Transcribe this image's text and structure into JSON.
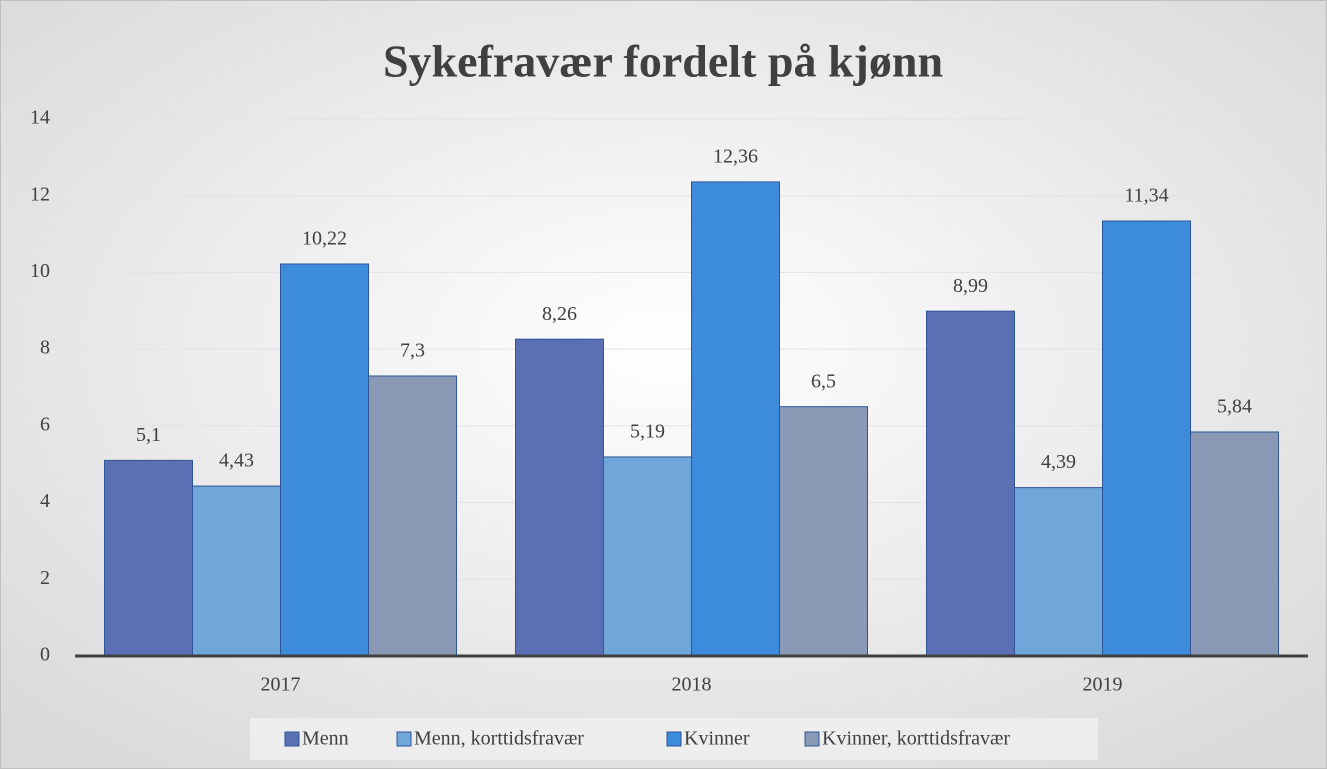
{
  "chart_data": {
    "type": "bar",
    "title": "Sykefravær fordelt på kjønn",
    "categories": [
      "2017",
      "2018",
      "2019"
    ],
    "series": [
      {
        "name": "Menn",
        "color": "#5b6fb4",
        "values": [
          5.1,
          8.26,
          8.99
        ],
        "value_labels": [
          "5,1",
          "8,26",
          "8,99"
        ]
      },
      {
        "name": "Menn, korttidsfravær",
        "color": "#6fa7da",
        "values": [
          4.43,
          5.19,
          4.39
        ],
        "value_labels": [
          "4,43",
          "5,19",
          "4,39"
        ]
      },
      {
        "name": "Kvinner",
        "color": "#3d8bdb",
        "values": [
          10.22,
          12.36,
          11.34
        ],
        "value_labels": [
          "10,22",
          "12,36",
          "11,34"
        ]
      },
      {
        "name": "Kvinner, korttidsfravær",
        "color": "#8a9ab6",
        "values": [
          7.3,
          6.5,
          5.84
        ],
        "value_labels": [
          "7,3",
          "6,5",
          "5,84"
        ]
      }
    ],
    "ylim": [
      0,
      14
    ],
    "yticks": [
      0,
      2,
      4,
      6,
      8,
      10,
      12,
      14
    ],
    "grid": true,
    "legend": "bottom"
  }
}
